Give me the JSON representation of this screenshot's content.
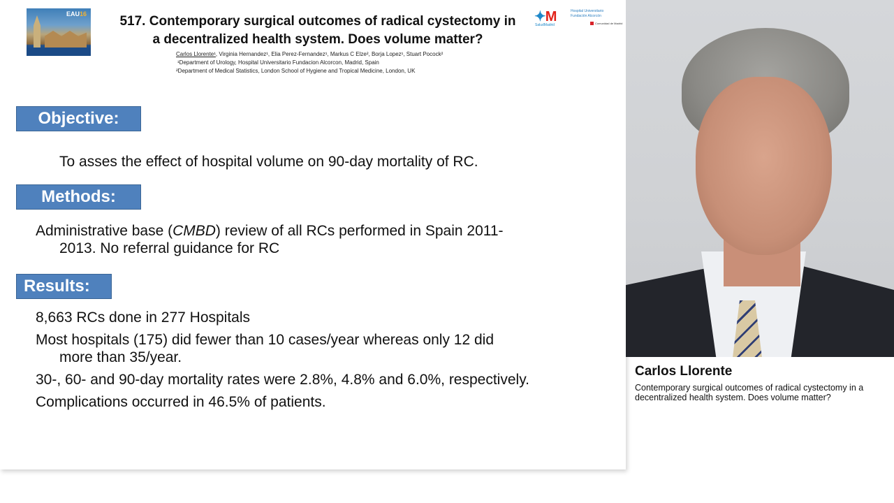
{
  "slide": {
    "conference_logo": {
      "label_prefix": "EAU",
      "label_year": "16",
      "city_text": "MUNICH"
    },
    "title_line1": "517. Contemporary surgical outcomes of radical cystectomy in",
    "title_line2": "a decentralized health system. Does volume matter?",
    "authors": {
      "presenter": "Carlos Llorente¹",
      "others": ", Virginia Hernandez¹, Elia Perez-Fernandez¹, Markus C Elze², Borja Lopez¹, Stuart Pocock²",
      "affiliation1": "¹Department of Urology, Hospital Universitario Fundacion Alcorcon, Madrid, Spain",
      "affiliation2": "²Department of Medical Statistics, London School of Hygiene and Tropical Medicine, London, UK"
    },
    "institution_logos": {
      "salud_madrid_mark": "M",
      "salud_madrid_label": "SaludMadrid",
      "hospital_name": "Hospital Universitario Fundación Alcorcón",
      "comunidad_label": "Comunidad de Madrid"
    },
    "sections": {
      "objective": {
        "heading": "Objective:",
        "text": "To asses the effect of hospital volume on 90-day mortality of RC."
      },
      "methods": {
        "heading": "Methods:",
        "text_line1_pre": "Administrative base (",
        "text_line1_em": "CMBD",
        "text_line1_post": ") review of all RCs performed in Spain 2011-",
        "text_line2": "2013. No referral guidance for RC"
      },
      "results": {
        "heading": "Results:",
        "items": [
          {
            "line1": "8,663 RCs done in 277 Hospitals",
            "line2": ""
          },
          {
            "line1": "Most hospitals (175) did fewer than 10 cases/year whereas only 12 did",
            "line2": "more than 35/year."
          },
          {
            "line1": "30-, 60- and 90-day mortality rates were 2.8%, 4.8% and 6.0%, respectively.",
            "line2": ""
          },
          {
            "line1": "Complications occurred in 46.5% of patients.",
            "line2": ""
          }
        ]
      }
    }
  },
  "speaker": {
    "name": "Carlos Llorente",
    "talk_title": "Contemporary surgical outcomes of radical cystectomy in a decentralized health system. Does volume matter?"
  },
  "colors": {
    "section_heading_bg": "#4f81bd",
    "salud_madrid_red": "#e2231a",
    "salud_madrid_blue": "#1e88c9"
  }
}
